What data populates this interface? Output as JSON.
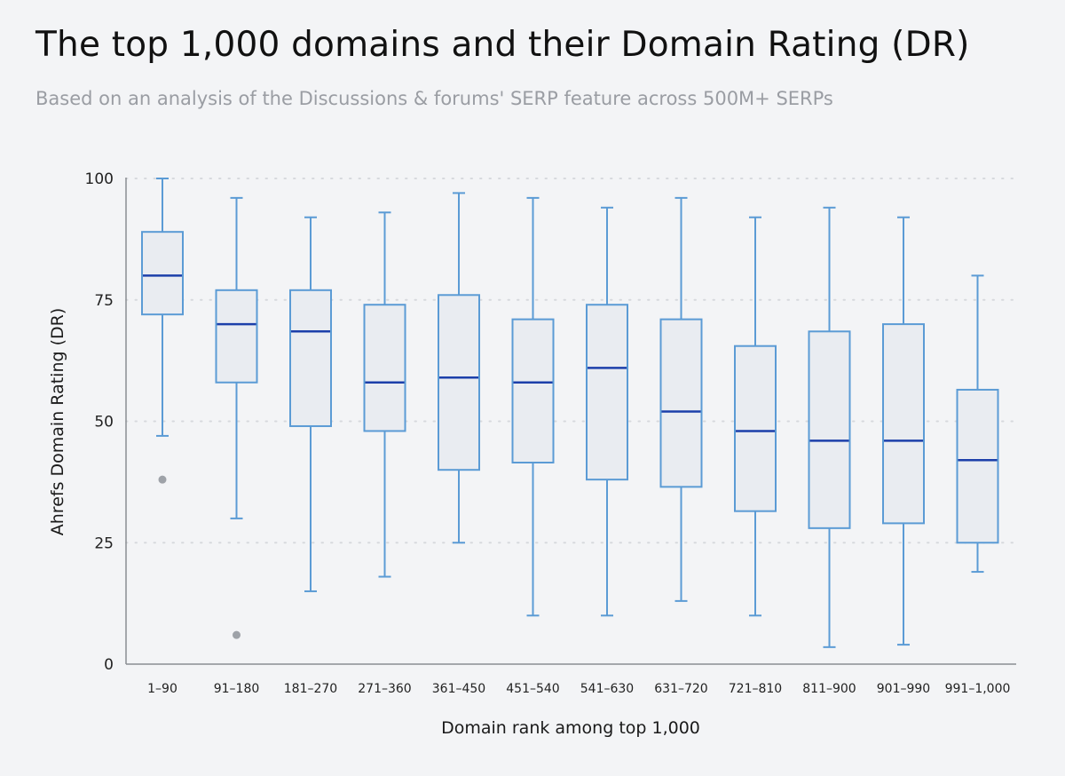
{
  "title": "The top 1,000 domains and their Domain Rating (DR)",
  "subtitle": "Based on an analysis of the Discussions & forums' SERP feature across 500M+ SERPs",
  "colors": {
    "background": "#f3f4f6",
    "box_stroke": "#5b9bd5",
    "box_fill": "#e9ecf1",
    "median": "#1c3faa",
    "outlier": "#9ea2a8",
    "grid": "#d7d9dd",
    "axis": "#8a8d92"
  },
  "chart_data": {
    "type": "box",
    "xlabel": "Domain rank among top 1,000",
    "ylabel": "Ahrefs Domain Rating (DR)",
    "ylim": [
      0,
      100
    ],
    "yticks": [
      0,
      25,
      50,
      75,
      100
    ],
    "grid": "horizontal dotted",
    "categories": [
      "1–90",
      "91–180",
      "181–270",
      "271–360",
      "361–450",
      "451–540",
      "541–630",
      "631–720",
      "721–810",
      "811–900",
      "901–990",
      "991–1,000"
    ],
    "boxes": [
      {
        "min": 47,
        "q1": 72,
        "median": 80,
        "q3": 89,
        "max": 100,
        "outliers": [
          38
        ]
      },
      {
        "min": 30,
        "q1": 58,
        "median": 70,
        "q3": 77,
        "max": 96,
        "outliers": [
          6
        ]
      },
      {
        "min": 15,
        "q1": 49,
        "median": 68.5,
        "q3": 77,
        "max": 92,
        "outliers": []
      },
      {
        "min": 18,
        "q1": 48,
        "median": 58,
        "q3": 74,
        "max": 93,
        "outliers": []
      },
      {
        "min": 25,
        "q1": 40,
        "median": 59,
        "q3": 76,
        "max": 97,
        "outliers": []
      },
      {
        "min": 10,
        "q1": 41.5,
        "median": 58,
        "q3": 71,
        "max": 96,
        "outliers": []
      },
      {
        "min": 10,
        "q1": 38,
        "median": 61,
        "q3": 74,
        "max": 94,
        "outliers": []
      },
      {
        "min": 13,
        "q1": 36.5,
        "median": 52,
        "q3": 71,
        "max": 96,
        "outliers": []
      },
      {
        "min": 10,
        "q1": 31.5,
        "median": 48,
        "q3": 65.5,
        "max": 92,
        "outliers": []
      },
      {
        "min": 3.5,
        "q1": 28,
        "median": 46,
        "q3": 68.5,
        "max": 94,
        "outliers": []
      },
      {
        "min": 4,
        "q1": 29,
        "median": 46,
        "q3": 70,
        "max": 92,
        "outliers": []
      },
      {
        "min": 19,
        "q1": 25,
        "median": 42,
        "q3": 56.5,
        "max": 80,
        "outliers": []
      }
    ]
  }
}
